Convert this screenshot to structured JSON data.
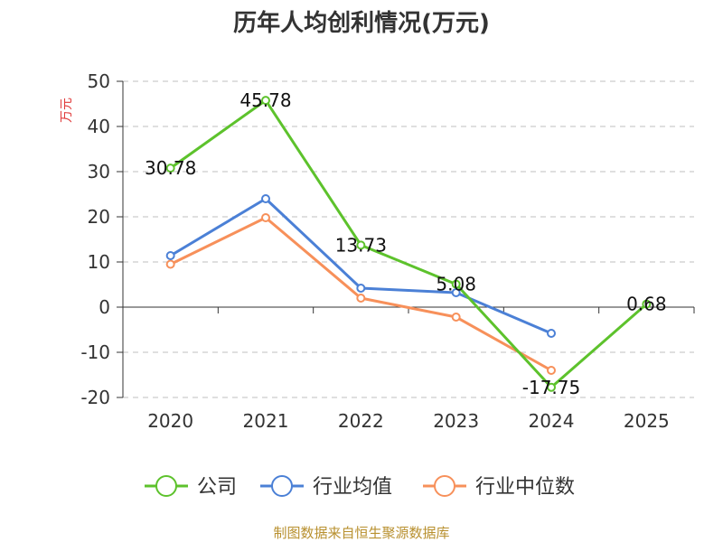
{
  "chart_data": {
    "type": "line",
    "title": "历年人均创利情况(万元)",
    "ylabel": "万元",
    "categories": [
      "2020",
      "2021",
      "2022",
      "2023",
      "2024",
      "2025"
    ],
    "ylim": [
      -20,
      50
    ],
    "yticks": [
      50,
      40,
      30,
      20,
      10,
      0,
      -10,
      -20
    ],
    "grid": true,
    "legend_position": "bottom",
    "series": [
      {
        "name": "公司",
        "color": "#5dc22c",
        "values": [
          30.78,
          45.78,
          13.73,
          5.08,
          -17.75,
          0.68
        ],
        "labels": [
          "30.78",
          "45.78",
          "13.73",
          "5.08",
          "-17.75",
          "0.68"
        ]
      },
      {
        "name": "行业均值",
        "color": "#4b80d6",
        "values": [
          11.4,
          24.0,
          4.2,
          3.2,
          -5.8,
          null
        ]
      },
      {
        "name": "行业中位数",
        "color": "#f7905a",
        "values": [
          9.5,
          19.8,
          2.0,
          -2.2,
          -14.0,
          null
        ]
      }
    ]
  },
  "source": "制图数据来自恒生聚源数据库"
}
